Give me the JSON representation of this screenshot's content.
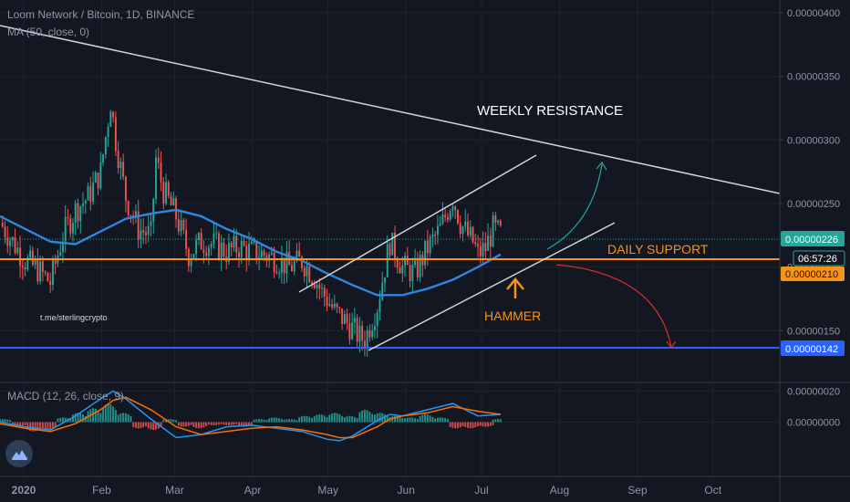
{
  "header": {
    "symbol_line": "Loom Network / Bitcoin, 1D, BINANCE",
    "ma_line": "MA (50, close, 0)",
    "macd_line": "MACD (12, 26, close, 9)"
  },
  "watermark": "t.me/sterlingcrypto",
  "annotations": {
    "weekly_resistance": "WEEKLY RESISTANCE",
    "daily_support": "DAILY SUPPORT",
    "hammer": "HAMMER"
  },
  "price_badges": {
    "last": "0.00000226",
    "countdown": "06:57:26",
    "support": "0.00000210",
    "target": "0.00000142"
  },
  "colors": {
    "background": "#131722",
    "up": "#26a69a",
    "down": "#ef5350",
    "ma": "#2e86de",
    "support": "#f7931a",
    "target": "#2962ff",
    "macd_line": "#2196f3",
    "signal_line": "#ff6d00",
    "bull_arrow": "#26a69a",
    "bear_arrow": "#d32f2f"
  },
  "chart_data": [
    {
      "type": "candlestick",
      "x_ticks": [
        "2020",
        "Feb",
        "Mar",
        "Apr",
        "May",
        "Jun",
        "Jul",
        "Aug",
        "Sep",
        "Oct"
      ],
      "y_ticks": [
        "0.00000400",
        "0.00000350",
        "0.00000300",
        "0.00000250",
        "0.00000200",
        "0.00000150"
      ],
      "ylim": [
        1.1e-06,
        4.1e-06
      ],
      "x_range_days": [
        0,
        310
      ],
      "series": [
        {
          "kind": "close",
          "values_x_days": [
            0,
            5,
            10,
            15,
            20,
            25,
            30,
            35,
            40,
            44,
            46,
            50,
            55,
            60,
            62,
            65,
            70,
            75,
            80,
            85,
            90,
            95,
            100,
            105,
            110,
            115,
            120,
            125,
            128,
            130,
            133,
            136,
            140,
            143,
            145,
            150,
            155,
            160,
            165,
            170,
            175,
            180,
            183,
            186,
            188,
            190,
            193,
            196,
            199
          ],
          "values": [
            2.35e-06,
            2.2e-06,
            2.05e-06,
            1.98e-06,
            1.88e-06,
            2.25e-06,
            2.45e-06,
            2.55e-06,
            2.75e-06,
            3.3e-06,
            3e-06,
            2.55e-06,
            2.3e-06,
            2.25e-06,
            2.85e-06,
            2.6e-06,
            2.4e-06,
            2.1e-06,
            2.2e-06,
            2.18e-06,
            2.12e-06,
            2.16e-06,
            2.12e-06,
            2.1e-06,
            2.06e-06,
            2e-06,
            2.05e-06,
            1.92e-06,
            1.8e-06,
            1.75e-06,
            1.65e-06,
            1.6e-06,
            1.52e-06,
            1.45e-06,
            1.43e-06,
            1.7e-06,
            2.2e-06,
            2e-06,
            1.95e-06,
            2.15e-06,
            2.3e-06,
            2.55e-06,
            2.35e-06,
            2.25e-06,
            2.2e-06,
            2.1e-06,
            2.15e-06,
            2.3e-06,
            2.26e-06
          ]
        },
        {
          "kind": "ma50",
          "values_x_days": [
            0,
            10,
            20,
            30,
            40,
            50,
            60,
            70,
            80,
            90,
            100,
            110,
            120,
            130,
            140,
            150,
            160,
            170,
            180,
            190,
            199
          ],
          "values": [
            2.4e-06,
            2.3e-06,
            2.2e-06,
            2.18e-06,
            2.28e-06,
            2.38e-06,
            2.42e-06,
            2.45e-06,
            2.4e-06,
            2.3e-06,
            2.22e-06,
            2.12e-06,
            2.05e-06,
            1.95e-06,
            1.86e-06,
            1.78e-06,
            1.78e-06,
            1.83e-06,
            1.9e-06,
            2e-06,
            2.1e-06
          ]
        }
      ]
    },
    {
      "type": "macd",
      "y_ticks": [
        "0.00000020",
        "0.00000000"
      ],
      "ylim": [
        -3.5e-07,
        2.5e-07
      ],
      "series": [
        {
          "kind": "histogram",
          "values_x_days": [
            2,
            8,
            14,
            20,
            26,
            32,
            38,
            44,
            50,
            56,
            62,
            68,
            74,
            80,
            86,
            92,
            98,
            104,
            110,
            116,
            122,
            128,
            134,
            140,
            146,
            152,
            158,
            164,
            170,
            176,
            182,
            188,
            194,
            199
          ],
          "values": [
            2e-08,
            -3e-08,
            -6e-08,
            -5e-08,
            3e-08,
            6e-08,
            9e-08,
            1.2e-07,
            6e-08,
            -4e-08,
            -5e-08,
            2e-08,
            -3e-08,
            -4e-08,
            -2e-08,
            -2e-08,
            -3e-08,
            2e-08,
            3e-08,
            2e-08,
            4e-08,
            5e-08,
            6e-08,
            4e-08,
            8e-08,
            6e-08,
            4e-08,
            3e-08,
            5e-08,
            3e-08,
            -4e-08,
            -4e-08,
            -3e-08,
            2e-08
          ]
        },
        {
          "kind": "macd",
          "values_x_days": [
            0,
            10,
            20,
            30,
            40,
            45,
            50,
            60,
            70,
            80,
            90,
            100,
            110,
            120,
            130,
            135,
            140,
            150,
            155,
            160,
            170,
            180,
            190,
            199
          ],
          "values": [
            0.0,
            -3e-08,
            -5e-08,
            4e-08,
            1.5e-07,
            2e-07,
            1.5e-07,
            2e-08,
            -1e-07,
            -8e-08,
            -3e-08,
            -2e-08,
            -4e-08,
            -6e-08,
            -1.1e-07,
            -1.2e-07,
            -9e-08,
            1e-08,
            5e-08,
            4e-08,
            8e-08,
            1.2e-07,
            4e-08,
            5e-08
          ]
        },
        {
          "kind": "signal",
          "values_x_days": [
            0,
            10,
            20,
            30,
            40,
            45,
            50,
            60,
            70,
            80,
            90,
            100,
            110,
            120,
            130,
            135,
            140,
            150,
            155,
            160,
            170,
            180,
            190,
            199
          ],
          "values": [
            -1e-08,
            -4e-08,
            -6e-08,
            -1e-08,
            8e-08,
            1.4e-07,
            1.6e-07,
            8e-08,
            -3e-08,
            -8e-08,
            -6e-08,
            -4e-08,
            -3e-08,
            -5e-08,
            -8e-08,
            -1e-07,
            -1e-07,
            -3e-08,
            2e-08,
            4e-08,
            6e-08,
            1e-07,
            7e-08,
            5e-08
          ]
        }
      ]
    }
  ]
}
